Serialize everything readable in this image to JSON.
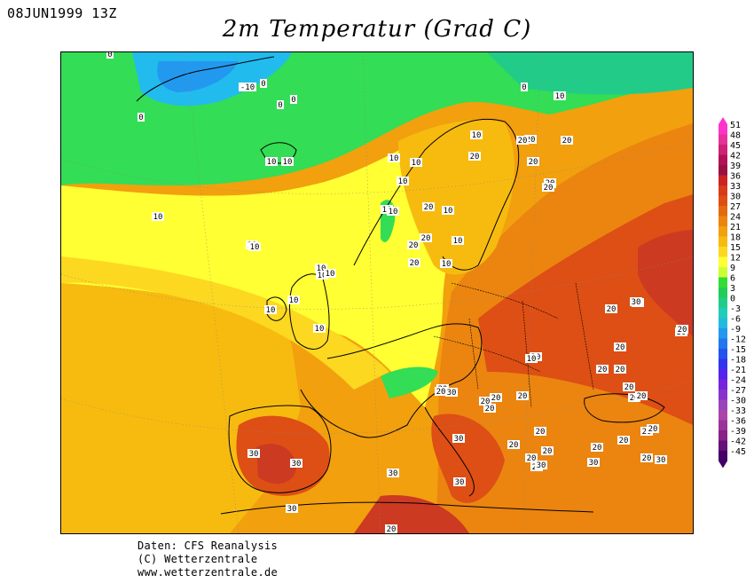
{
  "header": {
    "timestamp": "08JUN1999 13Z",
    "title": "2m Temperatur (Grad C)"
  },
  "credits": {
    "line1": "Daten: CFS Reanalysis",
    "line2": "(C) Wetterzentrale",
    "line3": "www.wetterzentrale.de"
  },
  "legend": {
    "ticks": [
      "51",
      "48",
      "45",
      "42",
      "39",
      "36",
      "33",
      "30",
      "27",
      "24",
      "21",
      "18",
      "15",
      "12",
      "9",
      "6",
      "3",
      "0",
      "-3",
      "-6",
      "-9",
      "-12",
      "-15",
      "-18",
      "-21",
      "-24",
      "-27",
      "-30",
      "-33",
      "-36",
      "-39",
      "-42",
      "-45"
    ],
    "colors": [
      "#ff33cc",
      "#e63399",
      "#cc2277",
      "#b31155",
      "#991144",
      "#cc2222",
      "#d93a18",
      "#dd4f14",
      "#e46a12",
      "#eb8510",
      "#f2a00e",
      "#f7bb10",
      "#fcd820",
      "#ffff33",
      "#ccff33",
      "#33dd33",
      "#22cc55",
      "#22cc88",
      "#22ccbb",
      "#22bbdd",
      "#2299ee",
      "#2277ee",
      "#2255ee",
      "#3333ee",
      "#5522ee",
      "#7722dd",
      "#8833cc",
      "#9944bb",
      "#aa44aa",
      "#993399",
      "#882288",
      "#661177",
      "#440066"
    ]
  },
  "map": {
    "colors": {
      "z0": "#33cc99",
      "z3": "#22dd66",
      "z9": "#ffff33",
      "z12": "#fcd820",
      "z15": "#f7bb10",
      "z18": "#f2a00e",
      "z21": "#eb8510",
      "z24": "#e46a12",
      "z27": "#dd4f14",
      "z30": "#cc3a22",
      "zneg": "#22bbee",
      "zneg10": "#2299ee"
    },
    "contour_labels": [
      "0",
      "0",
      "0",
      "-10",
      "0",
      "0",
      "10",
      "0",
      "10",
      "10",
      "10",
      "10",
      "10",
      "10",
      "20",
      "10",
      "10",
      "10",
      "20",
      "20",
      "20",
      "20",
      "20",
      "20",
      "20",
      "10",
      "10",
      "20",
      "20",
      "20",
      "10",
      "10",
      "10",
      "10",
      "10",
      "10",
      "10",
      "20",
      "20",
      "20",
      "20",
      "30",
      "30",
      "20",
      "20",
      "20",
      "20",
      "20",
      "20",
      "20",
      "20",
      "20",
      "20",
      "20",
      "20",
      "30",
      "30",
      "30",
      "30",
      "30",
      "30",
      "30",
      "30",
      "20",
      "20",
      "30",
      "20",
      "20",
      "20",
      "10",
      "10",
      "20",
      "10",
      "30",
      "20",
      "20",
      "20",
      "20",
      "20",
      "20",
      "20"
    ]
  }
}
